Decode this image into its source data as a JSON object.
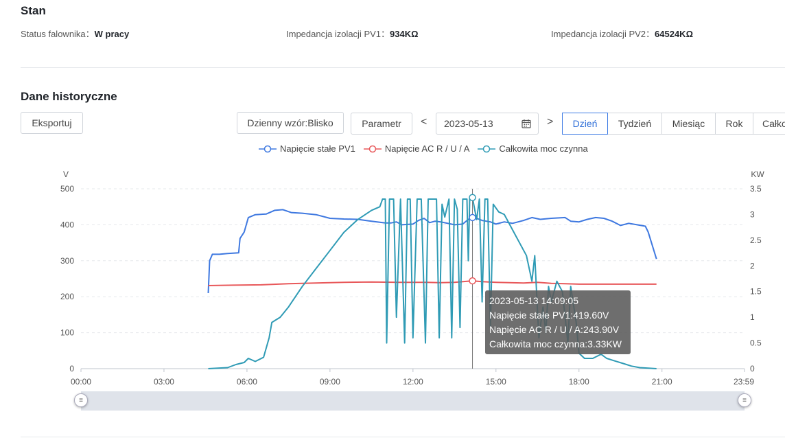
{
  "status_section": {
    "title": "Stan",
    "items": [
      {
        "label": "Status falownika：",
        "value": "W pracy"
      },
      {
        "label": "Impedancja izolacji PV1：",
        "value": "934KΩ"
      },
      {
        "label": "Impedancja izolacji PV2：",
        "value": "64524KΩ"
      }
    ]
  },
  "history_section": {
    "title": "Dane historyczne",
    "export_label": "Eksportuj",
    "pattern_label": "Dzienny wzór:Blisko",
    "param_label": "Parametr",
    "date_value": "2023-05-13",
    "prev_label": "<",
    "next_label": ">",
    "tabs": [
      "Dzień",
      "Tydzień",
      "Miesiąc",
      "Rok",
      "Całkowity"
    ],
    "active_tab": "Dzień"
  },
  "tooltip": {
    "time": "2023-05-13 14:09:05",
    "line1": "Napięcie stałe PV1:419.60V",
    "line2": "Napięcie AC R / U / A:243.90V",
    "line3": "Całkowita moc czynna:3.33KW"
  },
  "colors": {
    "pv1": "#3e78e0",
    "ac": "#e8585a",
    "power": "#2f9bb5",
    "accent": "#3d7be4"
  },
  "chart_data": {
    "type": "line",
    "left_unit": "V",
    "right_unit": "KW",
    "left_ticks": [
      "0",
      "100",
      "200",
      "300",
      "400",
      "500"
    ],
    "right_ticks": [
      "0",
      "0.5",
      "1",
      "1.5",
      "2",
      "2.5",
      "3",
      "3.5"
    ],
    "x_ticks": [
      "00:00",
      "03:00",
      "06:00",
      "09:00",
      "12:00",
      "15:00",
      "18:00",
      "21:00",
      "23:59"
    ],
    "ylim_left": [
      0,
      500
    ],
    "ylim_right": [
      0,
      3.5
    ],
    "xlim_hours": [
      0,
      23.983
    ],
    "crosshair_time": 14.15,
    "grid": true,
    "legend_position": "top-center",
    "series": [
      {
        "name": "Napięcie stałe PV1",
        "axis": "left",
        "points": [
          [
            4.6,
            210
          ],
          [
            4.65,
            300
          ],
          [
            4.75,
            318
          ],
          [
            5,
            318
          ],
          [
            5.3,
            320
          ],
          [
            5.7,
            322
          ],
          [
            5.75,
            362
          ],
          [
            5.9,
            380
          ],
          [
            6.05,
            420
          ],
          [
            6.3,
            428
          ],
          [
            6.7,
            430
          ],
          [
            7.0,
            440
          ],
          [
            7.3,
            442
          ],
          [
            7.6,
            434
          ],
          [
            8.0,
            432
          ],
          [
            8.5,
            428
          ],
          [
            9.0,
            418
          ],
          [
            9.5,
            416
          ],
          [
            10.0,
            415
          ],
          [
            10.5,
            410
          ],
          [
            11.0,
            405
          ],
          [
            11.2,
            405
          ],
          [
            11.4,
            408
          ],
          [
            11.6,
            400
          ],
          [
            12.0,
            402
          ],
          [
            12.2,
            412
          ],
          [
            12.4,
            418
          ],
          [
            12.6,
            406
          ],
          [
            12.8,
            410
          ],
          [
            13.0,
            408
          ],
          [
            13.5,
            400
          ],
          [
            13.8,
            402
          ],
          [
            14.0,
            415
          ],
          [
            14.15,
            420
          ],
          [
            14.3,
            418
          ],
          [
            14.5,
            412
          ],
          [
            14.8,
            408
          ],
          [
            15.0,
            402
          ],
          [
            15.3,
            408
          ],
          [
            15.6,
            404
          ],
          [
            16.0,
            412
          ],
          [
            16.3,
            420
          ],
          [
            16.6,
            415
          ],
          [
            17.0,
            418
          ],
          [
            17.5,
            420
          ],
          [
            17.7,
            410
          ],
          [
            18.0,
            408
          ],
          [
            18.3,
            415
          ],
          [
            18.6,
            420
          ],
          [
            18.9,
            418
          ],
          [
            19.2,
            410
          ],
          [
            19.5,
            398
          ],
          [
            19.8,
            404
          ],
          [
            20.1,
            400
          ],
          [
            20.4,
            396
          ],
          [
            20.5,
            380
          ],
          [
            20.8,
            305
          ]
        ]
      },
      {
        "name": "Napięcie AC R / U / A",
        "axis": "left",
        "points": [
          [
            4.6,
            231
          ],
          [
            5.5,
            232
          ],
          [
            6.5,
            233
          ],
          [
            7.5,
            236
          ],
          [
            8.5,
            238
          ],
          [
            9.5,
            240
          ],
          [
            10.5,
            241
          ],
          [
            11.5,
            240
          ],
          [
            12.5,
            240
          ],
          [
            13.0,
            239
          ],
          [
            13.5,
            240
          ],
          [
            14.15,
            244
          ],
          [
            14.5,
            242
          ],
          [
            15.0,
            240
          ],
          [
            15.5,
            239
          ],
          [
            16.0,
            238
          ],
          [
            16.5,
            240
          ],
          [
            17.0,
            237
          ],
          [
            17.5,
            236
          ],
          [
            18.0,
            235
          ],
          [
            19.0,
            235
          ],
          [
            20.0,
            235
          ],
          [
            20.8,
            235
          ]
        ]
      },
      {
        "name": "Całkowita moc czynna",
        "axis": "right",
        "points": [
          [
            4.6,
            0
          ],
          [
            5.3,
            0.02
          ],
          [
            5.6,
            0.08
          ],
          [
            5.9,
            0.12
          ],
          [
            6.05,
            0.2
          ],
          [
            6.3,
            0.14
          ],
          [
            6.6,
            0.22
          ],
          [
            6.8,
            0.6
          ],
          [
            6.9,
            0.9
          ],
          [
            7.2,
            1.0
          ],
          [
            7.5,
            1.2
          ],
          [
            8.0,
            1.6
          ],
          [
            8.5,
            1.95
          ],
          [
            9.0,
            2.3
          ],
          [
            9.5,
            2.65
          ],
          [
            10.0,
            2.9
          ],
          [
            10.5,
            3.08
          ],
          [
            10.8,
            3.15
          ],
          [
            10.9,
            3.3
          ],
          [
            11.0,
            3.3
          ],
          [
            11.05,
            0.5
          ],
          [
            11.15,
            3.3
          ],
          [
            11.3,
            3.3
          ],
          [
            11.4,
            1.0
          ],
          [
            11.55,
            3.3
          ],
          [
            11.7,
            0.5
          ],
          [
            11.8,
            3.3
          ],
          [
            11.9,
            3.3
          ],
          [
            12.0,
            0.6
          ],
          [
            12.15,
            3.3
          ],
          [
            12.3,
            3.3
          ],
          [
            12.45,
            0.5
          ],
          [
            12.55,
            3.3
          ],
          [
            12.7,
            3.3
          ],
          [
            12.85,
            3.3
          ],
          [
            12.95,
            0.6
          ],
          [
            13.05,
            3.2
          ],
          [
            13.15,
            2.95
          ],
          [
            13.3,
            3.3
          ],
          [
            13.4,
            0.6
          ],
          [
            13.5,
            3.3
          ],
          [
            13.6,
            3.1
          ],
          [
            13.7,
            0.8
          ],
          [
            13.8,
            3.3
          ],
          [
            13.95,
            3.3
          ],
          [
            14.0,
            2.1
          ],
          [
            14.05,
            3.3
          ],
          [
            14.15,
            3.33
          ],
          [
            14.3,
            2.9
          ],
          [
            14.4,
            3.3
          ],
          [
            14.5,
            1.3
          ],
          [
            14.6,
            3.3
          ],
          [
            14.7,
            3.3
          ],
          [
            14.8,
            0.8
          ],
          [
            14.9,
            3.2
          ],
          [
            15.1,
            3.05
          ],
          [
            15.3,
            3.0
          ],
          [
            15.6,
            2.7
          ],
          [
            15.9,
            2.4
          ],
          [
            16.1,
            2.2
          ],
          [
            16.3,
            1.7
          ],
          [
            16.4,
            2.2
          ],
          [
            16.55,
            0.6
          ],
          [
            16.7,
            1.2
          ],
          [
            16.8,
            0.7
          ],
          [
            16.9,
            1.6
          ],
          [
            17.0,
            1.3
          ],
          [
            17.2,
            1.7
          ],
          [
            17.4,
            1.5
          ],
          [
            17.6,
            0.5
          ],
          [
            17.7,
            1.6
          ],
          [
            17.9,
            0.9
          ],
          [
            18.0,
            0.3
          ],
          [
            18.2,
            0.2
          ],
          [
            18.5,
            0.2
          ],
          [
            18.8,
            0.28
          ],
          [
            19.0,
            0.2
          ],
          [
            19.3,
            0.15
          ],
          [
            19.6,
            0.1
          ],
          [
            19.9,
            0.05
          ],
          [
            20.2,
            0.02
          ],
          [
            20.8,
            0
          ]
        ]
      }
    ]
  }
}
